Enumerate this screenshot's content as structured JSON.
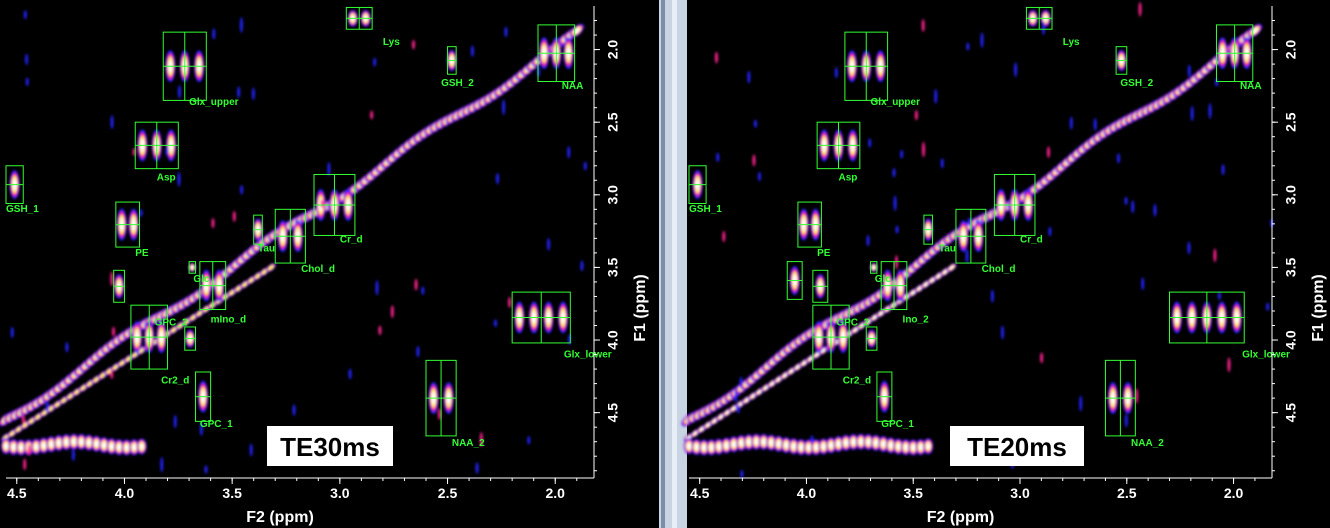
{
  "chart_data": [
    {
      "type": "heatmap",
      "title": "TE30ms",
      "xlabel": "F2 (ppm)",
      "ylabel": "F1 (ppm)",
      "xlim": [
        4.55,
        1.82
      ],
      "ylim": [
        1.7,
        4.95
      ],
      "xticks": [
        "4.5",
        "4.0",
        "3.5",
        "3.0",
        "2.5",
        "2.0"
      ],
      "yticks": [
        "2.0",
        "2.5",
        "3.0",
        "3.5",
        "4.0",
        "4.5"
      ],
      "colors": {
        "background": "#000000",
        "low": "#2222ff",
        "mid": "#ff2090",
        "high": "#ffee66",
        "top": "#ffffff",
        "box": "#33ff33"
      },
      "markers": [
        {
          "name": "Lys",
          "f2": [
            2.97,
            2.85
          ],
          "f1": [
            1.71,
            1.86
          ],
          "cols": 2,
          "rows": 2,
          "label_f2": 2.8,
          "label_f1": 1.97
        },
        {
          "name": "NAA",
          "f2": [
            2.08,
            1.91
          ],
          "f1": [
            1.83,
            2.22
          ],
          "cols": 2,
          "rows": 2,
          "label_f2": 1.97,
          "label_f1": 2.27
        },
        {
          "name": "GSH_2",
          "f2": [
            2.5,
            2.46
          ],
          "f1": [
            1.98,
            2.17
          ],
          "cols": 1,
          "rows": 2,
          "label_f2": 2.53,
          "label_f1": 2.25
        },
        {
          "name": "Glx_upper",
          "f2": [
            3.82,
            3.62
          ],
          "f1": [
            1.88,
            2.35
          ],
          "cols": 2,
          "rows": 2,
          "label_f2": 3.7,
          "label_f1": 2.38
        },
        {
          "name": "Asp",
          "f2": [
            3.95,
            3.75
          ],
          "f1": [
            2.5,
            2.82
          ],
          "cols": 2,
          "rows": 2,
          "label_f2": 3.85,
          "label_f1": 2.9
        },
        {
          "name": "GSH_1",
          "f2": [
            4.55,
            4.47
          ],
          "f1": [
            2.8,
            3.06
          ],
          "cols": 1,
          "rows": 2,
          "label_f2": 4.55,
          "label_f1": 3.12
        },
        {
          "name": "PE",
          "f2": [
            4.04,
            3.93
          ],
          "f1": [
            3.05,
            3.36
          ],
          "cols": 1,
          "rows": 2,
          "label_f2": 3.95,
          "label_f1": 3.42
        },
        {
          "name": "Glc",
          "f2": [
            3.7,
            3.67
          ],
          "f1": [
            3.46,
            3.54
          ],
          "cols": 1,
          "rows": 1,
          "label_f2": 3.68,
          "label_f1": 3.6
        },
        {
          "name": "Tau",
          "f2": [
            3.4,
            3.36
          ],
          "f1": [
            3.14,
            3.34
          ],
          "cols": 1,
          "rows": 2,
          "label_f2": 3.38,
          "label_f1": 3.39
        },
        {
          "name": "Chol_d",
          "f2": [
            3.3,
            3.16
          ],
          "f1": [
            3.1,
            3.47
          ],
          "cols": 2,
          "rows": 2,
          "label_f2": 3.18,
          "label_f1": 3.53
        },
        {
          "name": "Cr_d",
          "f2": [
            3.12,
            2.93
          ],
          "f1": [
            2.86,
            3.28
          ],
          "cols": 2,
          "rows": 2,
          "label_f2": 3.0,
          "label_f1": 3.33
        },
        {
          "name": "mIno_d",
          "f2": [
            3.65,
            3.53
          ],
          "f1": [
            3.46,
            3.79
          ],
          "cols": 2,
          "rows": 2,
          "label_f2": 3.6,
          "label_f1": 3.88
        },
        {
          "name": "Glx_lower",
          "f2": [
            2.2,
            1.93
          ],
          "f1": [
            3.67,
            4.02
          ],
          "cols": 2,
          "rows": 2,
          "label_f2": 1.96,
          "label_f1": 4.12
        },
        {
          "name": "GPC_2",
          "f2": [
            4.05,
            4.0
          ],
          "f1": [
            3.52,
            3.74
          ],
          "cols": 1,
          "rows": 2,
          "label_f2": 3.86,
          "label_f1": 3.9
        },
        {
          "name": "Cr2_d",
          "f2": [
            3.97,
            3.8
          ],
          "f1": [
            3.76,
            4.2
          ],
          "cols": 2,
          "rows": 2,
          "label_f2": 3.83,
          "label_f1": 4.3
        },
        {
          "name": "",
          "f2": [
            3.72,
            3.67
          ],
          "f1": [
            3.91,
            4.07
          ],
          "cols": 1,
          "rows": 2,
          "label_f2": 0,
          "label_f1": 0
        },
        {
          "name": "GPC_1",
          "f2": [
            3.67,
            3.6
          ],
          "f1": [
            4.22,
            4.56
          ],
          "cols": 1,
          "rows": 2,
          "label_f2": 3.65,
          "label_f1": 4.6
        },
        {
          "name": "NAA_2",
          "f2": [
            2.6,
            2.46
          ],
          "f1": [
            4.14,
            4.66
          ],
          "cols": 2,
          "rows": 2,
          "label_f2": 2.48,
          "label_f1": 4.73
        }
      ]
    },
    {
      "type": "heatmap",
      "title": "TE20ms",
      "xlabel": "F2 (ppm)",
      "ylabel": "F1 (ppm)",
      "xlim": [
        4.55,
        1.82
      ],
      "ylim": [
        1.7,
        4.95
      ],
      "xticks": [
        "4.5",
        "4.0",
        "3.5",
        "3.0",
        "2.5",
        "2.0"
      ],
      "yticks": [
        "2.0",
        "2.5",
        "3.0",
        "3.5",
        "4.0",
        "4.5"
      ],
      "colors": {
        "background": "#000000",
        "low": "#2222ff",
        "mid": "#ff2090",
        "high": "#ffee66",
        "top": "#ffffff",
        "box": "#33ff33"
      },
      "markers": [
        {
          "name": "Lys",
          "f2": [
            2.97,
            2.85
          ],
          "f1": [
            1.71,
            1.86
          ],
          "cols": 2,
          "rows": 2,
          "label_f2": 2.8,
          "label_f1": 1.97
        },
        {
          "name": "NAA",
          "f2": [
            2.08,
            1.91
          ],
          "f1": [
            1.83,
            2.22
          ],
          "cols": 2,
          "rows": 2,
          "label_f2": 1.97,
          "label_f1": 2.27
        },
        {
          "name": "GSH_2",
          "f2": [
            2.55,
            2.5
          ],
          "f1": [
            1.98,
            2.17
          ],
          "cols": 1,
          "rows": 2,
          "label_f2": 2.53,
          "label_f1": 2.25
        },
        {
          "name": "Glx_upper",
          "f2": [
            3.82,
            3.62
          ],
          "f1": [
            1.88,
            2.35
          ],
          "cols": 2,
          "rows": 2,
          "label_f2": 3.7,
          "label_f1": 2.38
        },
        {
          "name": "Asp",
          "f2": [
            3.95,
            3.75
          ],
          "f1": [
            2.5,
            2.82
          ],
          "cols": 2,
          "rows": 2,
          "label_f2": 3.85,
          "label_f1": 2.9
        },
        {
          "name": "GSH_1",
          "f2": [
            4.55,
            4.47
          ],
          "f1": [
            2.8,
            3.06
          ],
          "cols": 1,
          "rows": 2,
          "label_f2": 4.55,
          "label_f1": 3.12
        },
        {
          "name": "PE",
          "f2": [
            4.04,
            3.93
          ],
          "f1": [
            3.05,
            3.36
          ],
          "cols": 1,
          "rows": 2,
          "label_f2": 3.95,
          "label_f1": 3.42
        },
        {
          "name": "Glc",
          "f2": [
            3.7,
            3.67
          ],
          "f1": [
            3.46,
            3.54
          ],
          "cols": 1,
          "rows": 1,
          "label_f2": 3.68,
          "label_f1": 3.6
        },
        {
          "name": "Tau",
          "f2": [
            3.45,
            3.41
          ],
          "f1": [
            3.14,
            3.34
          ],
          "cols": 1,
          "rows": 2,
          "label_f2": 3.38,
          "label_f1": 3.39
        },
        {
          "name": "Chol_d",
          "f2": [
            3.3,
            3.16
          ],
          "f1": [
            3.1,
            3.47
          ],
          "cols": 2,
          "rows": 2,
          "label_f2": 3.18,
          "label_f1": 3.53
        },
        {
          "name": "Cr_d",
          "f2": [
            3.12,
            2.93
          ],
          "f1": [
            2.86,
            3.28
          ],
          "cols": 2,
          "rows": 2,
          "label_f2": 3.0,
          "label_f1": 3.33
        },
        {
          "name": "Ino_2",
          "f2": [
            3.65,
            3.53
          ],
          "f1": [
            3.46,
            3.79
          ],
          "cols": 2,
          "rows": 2,
          "label_f2": 3.55,
          "label_f1": 3.88
        },
        {
          "name": "Glx_lower",
          "f2": [
            2.3,
            1.95
          ],
          "f1": [
            3.67,
            4.02
          ],
          "cols": 2,
          "rows": 2,
          "label_f2": 1.96,
          "label_f1": 4.12
        },
        {
          "name": "GPC_2",
          "f2": [
            3.97,
            3.9
          ],
          "f1": [
            3.52,
            3.74
          ],
          "cols": 1,
          "rows": 2,
          "label_f2": 3.86,
          "label_f1": 3.9
        },
        {
          "name": "",
          "f2": [
            4.09,
            4.02
          ],
          "f1": [
            3.46,
            3.72
          ],
          "cols": 1,
          "rows": 2,
          "label_f2": 0,
          "label_f1": 0
        },
        {
          "name": "Cr2_d",
          "f2": [
            3.97,
            3.8
          ],
          "f1": [
            3.76,
            4.2
          ],
          "cols": 2,
          "rows": 2,
          "label_f2": 3.83,
          "label_f1": 4.3
        },
        {
          "name": "",
          "f2": [
            3.72,
            3.67
          ],
          "f1": [
            3.91,
            4.07
          ],
          "cols": 1,
          "rows": 2,
          "label_f2": 0,
          "label_f1": 0
        },
        {
          "name": "GPC_1",
          "f2": [
            3.67,
            3.6
          ],
          "f1": [
            4.22,
            4.56
          ],
          "cols": 1,
          "rows": 2,
          "label_f2": 3.65,
          "label_f1": 4.6
        },
        {
          "name": "NAA_2",
          "f2": [
            2.6,
            2.46
          ],
          "f1": [
            4.14,
            4.66
          ],
          "cols": 2,
          "rows": 2,
          "label_f2": 2.48,
          "label_f1": 4.73
        }
      ]
    }
  ]
}
